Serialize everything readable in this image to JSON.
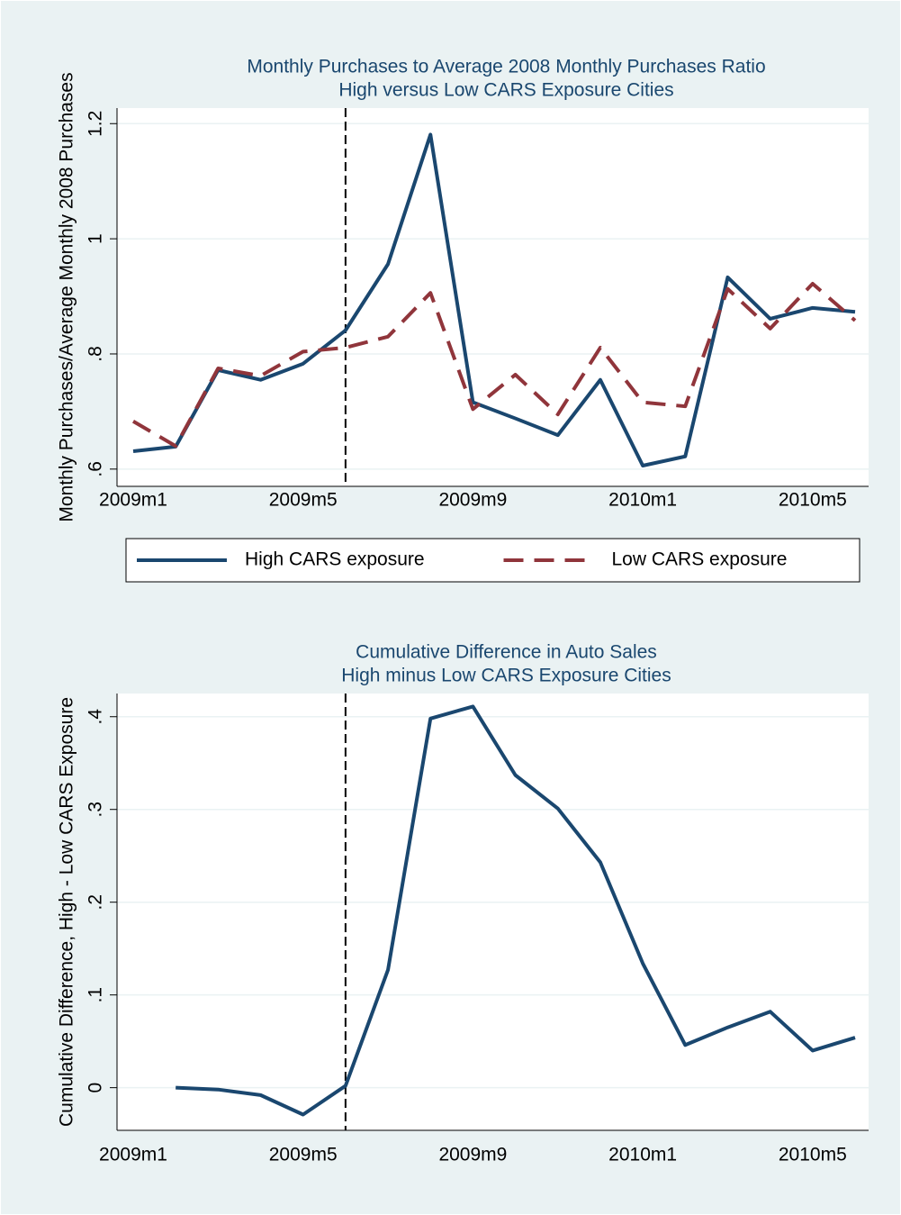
{
  "chart_data": [
    {
      "type": "line",
      "title": [
        "Monthly Purchases to Average 2008 Monthly Purchases Ratio",
        "High versus Low CARS Exposure Cities"
      ],
      "y_label": "Monthly Purchases/Average Monthly 2008 Purchases",
      "categories": [
        "2009m1",
        null,
        null,
        null,
        "2009m5",
        null,
        null,
        null,
        "2009m9",
        null,
        null,
        null,
        "2010m1",
        null,
        null,
        null,
        "2010m5",
        null
      ],
      "series": [
        {
          "name": "High CARS exposure",
          "color": "#1a476f",
          "dash": "solid",
          "values": [
            0.631,
            0.639,
            0.772,
            0.755,
            0.783,
            0.841,
            0.956,
            1.181,
            0.716,
            0.688,
            0.659,
            0.755,
            0.606,
            0.622,
            0.933,
            0.861,
            0.88,
            0.873
          ]
        },
        {
          "name": "Low CARS exposure",
          "color": "#90353b",
          "dash": "dashed",
          "values": [
            0.683,
            0.64,
            0.775,
            0.762,
            0.804,
            0.811,
            0.83,
            0.906,
            0.704,
            0.764,
            0.695,
            0.811,
            0.716,
            0.709,
            0.913,
            0.844,
            0.922,
            0.858
          ]
        }
      ],
      "ylim": [
        0.57,
        1.227
      ],
      "yticks": [
        {
          "value": 0.6,
          "label": ".6"
        },
        {
          "value": 0.8,
          "label": ".8"
        },
        1,
        1.2
      ],
      "grid": true,
      "reference_line_index": 5,
      "legend": "bottom"
    },
    {
      "type": "line",
      "title": [
        "Cumulative Difference in Auto Sales",
        "High minus Low CARS Exposure Cities"
      ],
      "y_label": "Cumulative Difference, High - Low CARS Exposure",
      "categories": [
        "2009m1",
        null,
        null,
        null,
        "2009m5",
        null,
        null,
        null,
        "2009m9",
        null,
        null,
        null,
        "2010m1",
        null,
        null,
        null,
        "2010m5",
        null
      ],
      "series": [
        {
          "color": "#1a476f",
          "dash": "solid",
          "values": [
            null,
            0.0,
            -0.002,
            -0.008,
            -0.029,
            0.002,
            0.127,
            0.398,
            0.411,
            0.337,
            0.301,
            0.243,
            0.134,
            0.046,
            0.065,
            0.082,
            0.04,
            0.054
          ]
        }
      ],
      "ylim": [
        -0.046,
        0.425
      ],
      "yticks": [
        0,
        {
          "value": 0.1,
          "label": ".1"
        },
        {
          "value": 0.2,
          "label": ".2"
        },
        {
          "value": 0.3,
          "label": ".3"
        },
        {
          "value": 0.4,
          "label": ".4"
        }
      ],
      "grid": true,
      "reference_line_index": 5
    }
  ]
}
